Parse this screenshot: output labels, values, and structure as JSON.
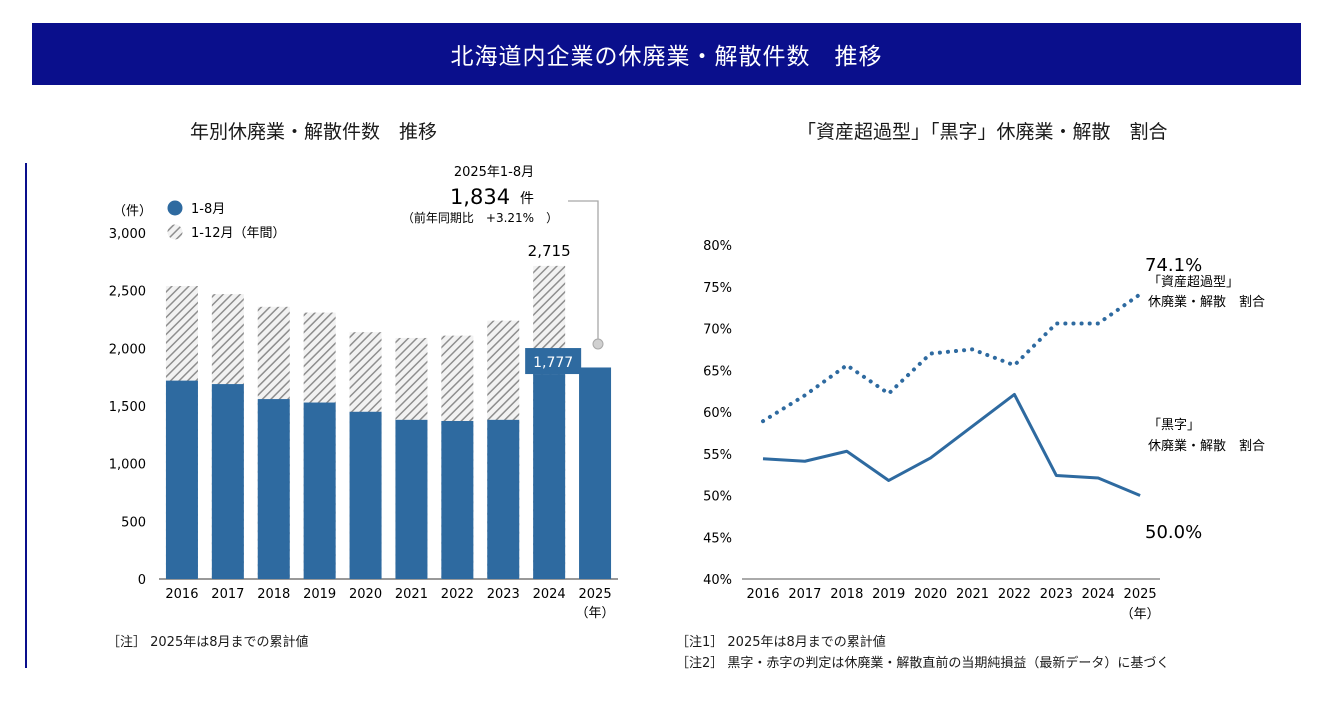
{
  "banner": {
    "title": "北海道内企業の休廃業・解散件数　推移"
  },
  "left_chart": {
    "title": "年別休廃業・解散件数　推移",
    "note": "［注］ 2025年は8月までの累計値"
  },
  "right_chart": {
    "title": "「資産超過型」「黒字」休廃業・解散　割合",
    "notes": [
      "［注1］ 2025年は8月までの累計値",
      "［注2］ 黒字・赤字の判定は休廃業・解散直前の当期純損益（最新データ）に基づく"
    ]
  },
  "colors": {
    "banner": "#0a0f8c",
    "bar_blue": "#2e6aa0",
    "hatch": "#9a9a9a",
    "line_blue": "#2e6aa0"
  },
  "chart_data": [
    {
      "type": "bar",
      "title": "年別休廃業・解散件数　推移",
      "ylabel": "（件）",
      "xlabel": "（年）",
      "ylim": [
        0,
        3000
      ],
      "yticks": [
        "0",
        "500",
        "1,000",
        "1,500",
        "2,000",
        "2,500",
        "3,000"
      ],
      "categories": [
        "2016",
        "2017",
        "2018",
        "2019",
        "2020",
        "2021",
        "2022",
        "2023",
        "2024",
        "2025"
      ],
      "series": [
        {
          "name": "1-12月（年間）",
          "style": "hatched",
          "values": [
            2540,
            2470,
            2360,
            2310,
            2140,
            2090,
            2110,
            2240,
            2715,
            null
          ]
        },
        {
          "name": "1-8月",
          "style": "solid",
          "values": [
            1720,
            1690,
            1560,
            1530,
            1450,
            1380,
            1370,
            1380,
            1777,
            1834
          ]
        }
      ],
      "legend": "top-left",
      "data_labels": {
        "annual_2024": "2,715",
        "jan_aug_2024": "1,777"
      },
      "callout": {
        "title": "2025年1-8月",
        "value": "1,834",
        "unit": "件",
        "comparison": "（前年同期比　+3.21%　）"
      }
    },
    {
      "type": "line",
      "title": "「資産超過型」「黒字」休廃業・解散　割合",
      "xlabel": "（年）",
      "ylim": [
        40,
        80
      ],
      "yticks": [
        "40%",
        "45%",
        "50%",
        "55%",
        "60%",
        "65%",
        "70%",
        "75%",
        "80%"
      ],
      "x": [
        "2016",
        "2017",
        "2018",
        "2019",
        "2020",
        "2021",
        "2022",
        "2023",
        "2024",
        "2025"
      ],
      "series": [
        {
          "name": "「資産超過型」休廃業・解散　割合",
          "style": "dotted",
          "values": [
            58.9,
            62.0,
            65.6,
            62.2,
            67.0,
            67.5,
            65.6,
            70.6,
            70.6,
            74.1
          ],
          "end_label": "74.1%",
          "label_lines": [
            "「資産超過型」",
            "休廃業・解散　割合"
          ]
        },
        {
          "name": "「黒字」休廃業・解散　割合",
          "style": "solid",
          "values": [
            54.4,
            54.1,
            55.3,
            51.8,
            54.5,
            58.3,
            62.1,
            52.4,
            52.1,
            50.0
          ],
          "end_label": "50.0%",
          "label_lines": [
            "「黒字」",
            "休廃業・解散　割合"
          ]
        }
      ]
    }
  ]
}
